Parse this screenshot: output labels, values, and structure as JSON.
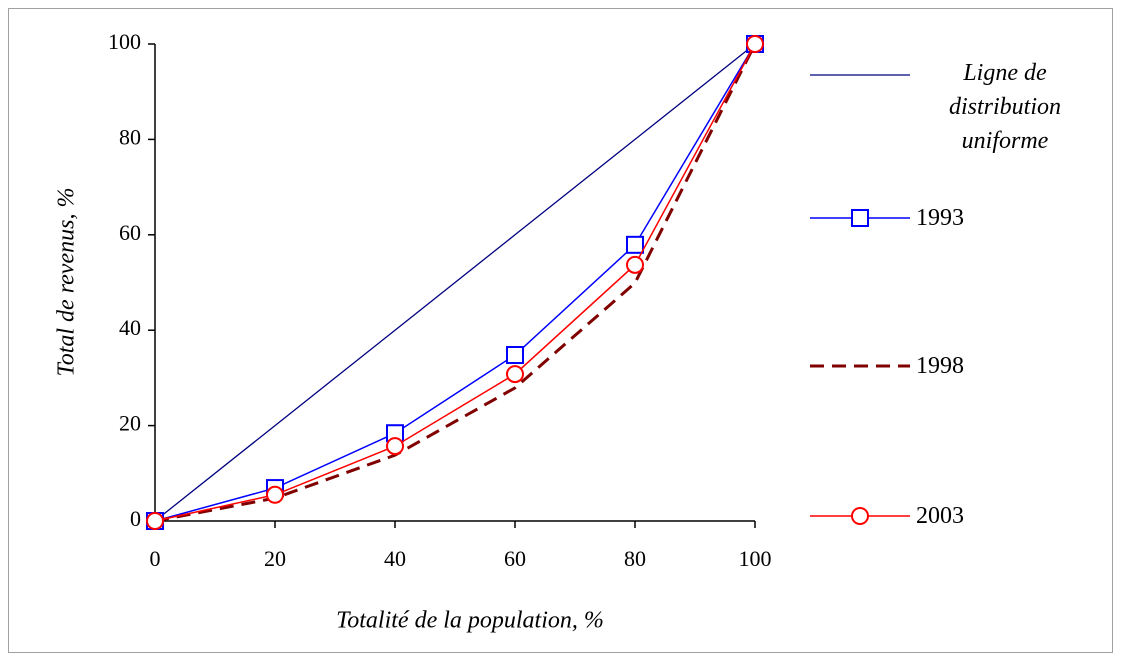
{
  "chart_data": {
    "type": "line",
    "x_label": "Totalité de la population, %",
    "y_label": "Total de revenus, %",
    "x": [
      0,
      20,
      40,
      60,
      80,
      100
    ],
    "xlim": [
      0,
      100
    ],
    "xticks": [
      0,
      20,
      40,
      60,
      80,
      100
    ],
    "ylim": [
      0,
      100
    ],
    "yticks": [
      0,
      20,
      40,
      60,
      80,
      100
    ],
    "grid": false,
    "legend": "right",
    "series": [
      {
        "name": "Ligne de distribution uniforme",
        "color": "#000080",
        "marker": "none",
        "dash": false,
        "values": [
          0,
          20,
          40,
          60,
          80,
          100
        ]
      },
      {
        "name": "1993",
        "color": "#0000ff",
        "marker": "square",
        "dash": false,
        "values": [
          0,
          6.9,
          18.4,
          34.8,
          57.9,
          100
        ]
      },
      {
        "name": "1998",
        "color": "#800000",
        "marker": "none",
        "dash": true,
        "values": [
          0,
          4.8,
          13.8,
          27.9,
          49.9,
          100
        ]
      },
      {
        "name": "2003",
        "color": "#ff0000",
        "marker": "circle",
        "dash": false,
        "values": [
          0,
          5.5,
          15.7,
          30.8,
          53.7,
          100
        ]
      }
    ]
  }
}
